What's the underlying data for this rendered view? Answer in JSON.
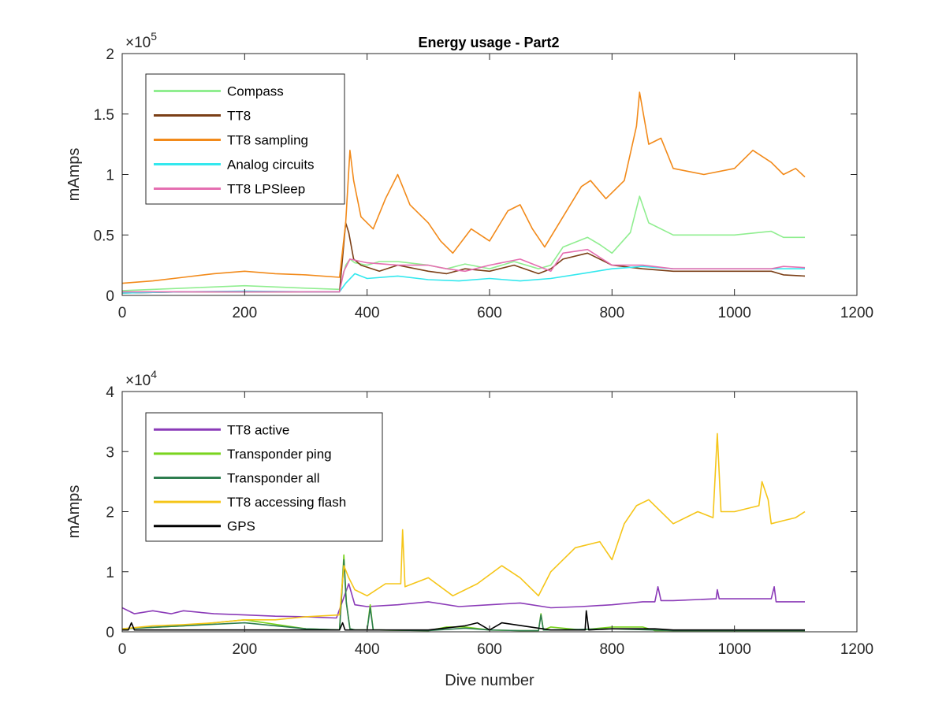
{
  "title": "Energy usage - Part2",
  "chart_data": [
    {
      "type": "line",
      "title": "Energy usage - Part2",
      "xlabel": "",
      "ylabel": "mAmps",
      "xlim": [
        0,
        1200
      ],
      "ylim": [
        0,
        200000
      ],
      "xticks": [
        0,
        200,
        400,
        600,
        800,
        1000,
        1200
      ],
      "xtick_labels": [
        "0",
        "200",
        "400",
        "600",
        "800",
        "1000",
        "1200"
      ],
      "yticks": [
        0,
        50000,
        100000,
        150000,
        200000
      ],
      "ytick_labels": [
        "0",
        "0.5",
        "1",
        "1.5",
        "2"
      ],
      "exponent_base": "×10",
      "exponent_power": "5",
      "grid": false,
      "legend_position": "top-left",
      "series": [
        {
          "name": "Compass",
          "color": "#90ee90",
          "x": [
            0,
            100,
            200,
            300,
            355,
            365,
            372,
            380,
            400,
            420,
            450,
            500,
            530,
            560,
            600,
            640,
            680,
            700,
            720,
            760,
            780,
            800,
            830,
            845,
            860,
            900,
            950,
            1000,
            1060,
            1080,
            1115
          ],
          "y": [
            4000,
            6000,
            8000,
            6000,
            5000,
            25000,
            30000,
            27000,
            25000,
            28000,
            28000,
            25000,
            22000,
            26000,
            22000,
            28000,
            22000,
            25000,
            40000,
            48000,
            42000,
            35000,
            52000,
            82000,
            60000,
            50000,
            50000,
            50000,
            53000,
            48000,
            48000
          ]
        },
        {
          "name": "TT8",
          "color": "#7b3f16",
          "x": [
            0,
            100,
            200,
            300,
            355,
            365,
            370,
            378,
            390,
            420,
            450,
            500,
            530,
            560,
            600,
            640,
            680,
            700,
            720,
            760,
            800,
            850,
            900,
            1000,
            1060,
            1080,
            1115
          ],
          "y": [
            2000,
            3000,
            3000,
            3000,
            3000,
            60000,
            52000,
            30000,
            25000,
            20000,
            25000,
            20000,
            18000,
            22000,
            20000,
            25000,
            18000,
            22000,
            30000,
            35000,
            25000,
            22000,
            20000,
            20000,
            20000,
            17000,
            16000
          ]
        },
        {
          "name": "TT8 sampling",
          "color": "#f28a1a",
          "x": [
            0,
            50,
            100,
            150,
            200,
            250,
            300,
            355,
            365,
            372,
            378,
            390,
            410,
            430,
            450,
            470,
            500,
            520,
            540,
            570,
            600,
            630,
            650,
            670,
            690,
            720,
            750,
            765,
            790,
            820,
            840,
            845,
            860,
            880,
            900,
            950,
            1000,
            1030,
            1060,
            1080,
            1100,
            1115
          ],
          "y": [
            10000,
            12000,
            15000,
            18000,
            20000,
            18000,
            17000,
            15000,
            60000,
            120000,
            95000,
            65000,
            55000,
            80000,
            100000,
            75000,
            60000,
            45000,
            35000,
            55000,
            45000,
            70000,
            75000,
            55000,
            40000,
            65000,
            90000,
            95000,
            80000,
            95000,
            140000,
            168000,
            125000,
            130000,
            105000,
            100000,
            105000,
            120000,
            110000,
            100000,
            105000,
            98000
          ]
        },
        {
          "name": "Analog circuits",
          "color": "#33e8ee",
          "x": [
            0,
            100,
            200,
            300,
            355,
            365,
            380,
            400,
            450,
            500,
            550,
            600,
            650,
            700,
            750,
            800,
            850,
            900,
            1000,
            1100,
            1115
          ],
          "y": [
            2000,
            3000,
            3500,
            3000,
            3000,
            10000,
            18000,
            14000,
            16000,
            13000,
            12000,
            14000,
            12000,
            14000,
            18000,
            22000,
            24000,
            22000,
            22000,
            22000,
            22000
          ]
        },
        {
          "name": "TT8 LPSleep",
          "color": "#e56fb1",
          "x": [
            0,
            100,
            200,
            300,
            355,
            362,
            372,
            400,
            450,
            500,
            530,
            560,
            600,
            650,
            700,
            720,
            760,
            800,
            850,
            900,
            1000,
            1060,
            1080,
            1115
          ],
          "y": [
            3000,
            3000,
            3000,
            3000,
            3000,
            20000,
            30000,
            27000,
            25000,
            25000,
            22000,
            20000,
            25000,
            30000,
            20000,
            35000,
            38000,
            25000,
            25000,
            22000,
            22000,
            22000,
            24000,
            23000
          ]
        }
      ]
    },
    {
      "type": "line",
      "title": "",
      "xlabel": "Dive number",
      "ylabel": "mAmps",
      "xlim": [
        0,
        1200
      ],
      "ylim": [
        0,
        40000
      ],
      "xticks": [
        0,
        200,
        400,
        600,
        800,
        1000,
        1200
      ],
      "xtick_labels": [
        "0",
        "200",
        "400",
        "600",
        "800",
        "1000",
        "1200"
      ],
      "yticks": [
        0,
        10000,
        20000,
        30000,
        40000
      ],
      "ytick_labels": [
        "0",
        "1",
        "2",
        "3",
        "4"
      ],
      "exponent_base": "×10",
      "exponent_power": "4",
      "grid": false,
      "legend_position": "top-left",
      "series": [
        {
          "name": "TT8 active",
          "color": "#8b3bb8",
          "x": [
            0,
            20,
            50,
            80,
            100,
            150,
            200,
            250,
            300,
            350,
            370,
            380,
            400,
            450,
            500,
            550,
            600,
            650,
            700,
            750,
            800,
            850,
            870,
            875,
            880,
            900,
            970,
            972,
            975,
            1000,
            1060,
            1065,
            1068,
            1100,
            1115
          ],
          "y": [
            4000,
            3000,
            3500,
            3000,
            3500,
            3000,
            2800,
            2600,
            2500,
            2300,
            8000,
            4500,
            4200,
            4500,
            5000,
            4200,
            4500,
            4800,
            4000,
            4200,
            4500,
            5000,
            5000,
            7500,
            5200,
            5200,
            5500,
            7000,
            5500,
            5500,
            5500,
            7500,
            5000,
            5000,
            5000
          ]
        },
        {
          "name": "Transponder ping",
          "color": "#7ad41e",
          "x": [
            0,
            100,
            200,
            300,
            355,
            362,
            366,
            372,
            380,
            400,
            405,
            410,
            420,
            500,
            530,
            560,
            600,
            650,
            680,
            684,
            688,
            700,
            750,
            800,
            850,
            870,
            900,
            1000,
            1115
          ],
          "y": [
            500,
            1000,
            2000,
            500,
            300,
            12800,
            5000,
            500,
            300,
            300,
            4500,
            300,
            300,
            200,
            800,
            800,
            300,
            200,
            200,
            3000,
            300,
            800,
            300,
            800,
            800,
            200,
            200,
            200,
            200
          ]
        },
        {
          "name": "Transponder all",
          "color": "#2e7d4f",
          "x": [
            0,
            100,
            200,
            300,
            355,
            362,
            366,
            372,
            380,
            400,
            405,
            410,
            420,
            500,
            560,
            600,
            650,
            680,
            684,
            688,
            700,
            800,
            900,
            1000,
            1115
          ],
          "y": [
            500,
            1000,
            1500,
            500,
            300,
            12000,
            4800,
            500,
            300,
            300,
            4000,
            300,
            300,
            200,
            600,
            300,
            200,
            200,
            2800,
            300,
            300,
            500,
            200,
            200,
            200
          ]
        },
        {
          "name": "TT8 accessing flash",
          "color": "#f5c518",
          "x": [
            0,
            50,
            100,
            150,
            200,
            250,
            300,
            355,
            362,
            370,
            380,
            400,
            430,
            455,
            458,
            462,
            500,
            540,
            580,
            620,
            650,
            680,
            700,
            740,
            780,
            800,
            820,
            840,
            860,
            900,
            940,
            965,
            972,
            978,
            1000,
            1040,
            1045,
            1055,
            1060,
            1080,
            1100,
            1115
          ],
          "y": [
            500,
            1000,
            1200,
            1500,
            2000,
            2000,
            2500,
            2800,
            11000,
            9000,
            7000,
            6000,
            8000,
            8000,
            17000,
            7500,
            9000,
            6000,
            8000,
            11000,
            9000,
            6000,
            10000,
            14000,
            15000,
            12000,
            18000,
            21000,
            22000,
            18000,
            20000,
            19000,
            33000,
            20000,
            20000,
            21000,
            25000,
            22000,
            18000,
            18500,
            19000,
            20000
          ]
        },
        {
          "name": "GPS",
          "color": "#000000",
          "x": [
            0,
            10,
            15,
            20,
            100,
            200,
            300,
            355,
            360,
            364,
            370,
            400,
            500,
            560,
            580,
            600,
            620,
            700,
            756,
            758,
            762,
            800,
            870,
            900,
            1000,
            1115
          ],
          "y": [
            300,
            300,
            1500,
            300,
            300,
            300,
            300,
            300,
            1500,
            300,
            300,
            300,
            300,
            1000,
            1500,
            300,
            1500,
            300,
            300,
            3500,
            300,
            500,
            500,
            300,
            300,
            300
          ]
        }
      ]
    }
  ]
}
